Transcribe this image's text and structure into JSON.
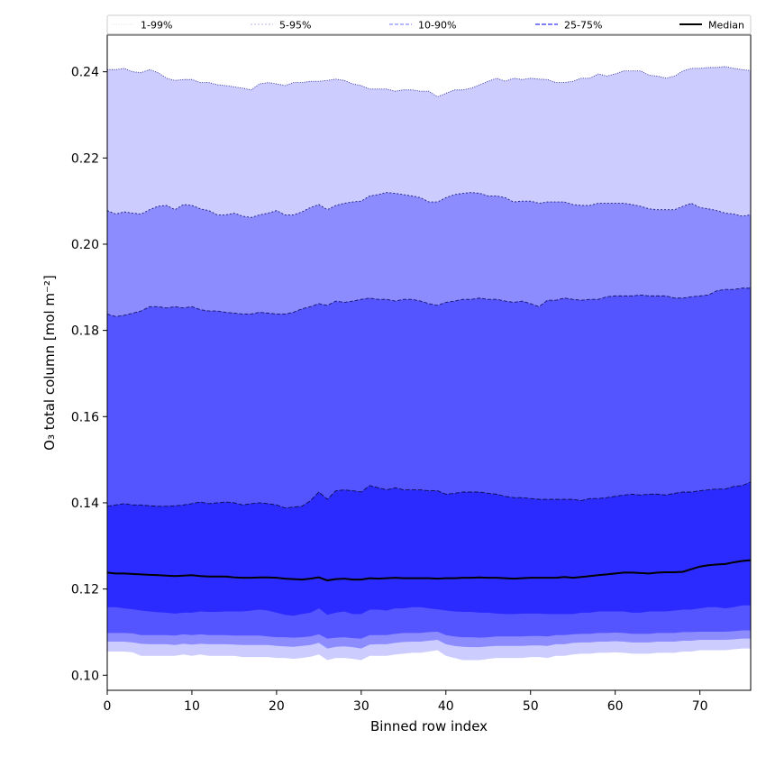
{
  "chart_data": {
    "type": "area",
    "title": "",
    "xlabel": "Binned row index",
    "ylabel": "O₃ total column [mol m⁻²]",
    "xlim": [
      0,
      76
    ],
    "ylim": [
      0.0965,
      0.2485
    ],
    "xticks": [
      0,
      10,
      20,
      30,
      40,
      50,
      60,
      70
    ],
    "yticks": [
      0.1,
      0.12,
      0.14,
      0.16,
      0.18,
      0.2,
      0.22,
      0.24
    ],
    "ytick_labels": [
      "0.10",
      "0.12",
      "0.14",
      "0.16",
      "0.18",
      "0.20",
      "0.22",
      "0.24"
    ],
    "grid": false,
    "legend_position": "top",
    "legend": [
      "1-99%",
      "5-95%",
      "10-90%",
      "25-75%",
      "Median"
    ],
    "x": [
      0,
      1,
      2,
      3,
      4,
      5,
      6,
      7,
      8,
      9,
      10,
      11,
      12,
      13,
      14,
      15,
      16,
      17,
      18,
      19,
      20,
      21,
      22,
      23,
      24,
      25,
      26,
      27,
      28,
      29,
      30,
      31,
      32,
      33,
      34,
      35,
      36,
      37,
      38,
      39,
      40,
      41,
      42,
      43,
      44,
      45,
      46,
      47,
      48,
      49,
      50,
      51,
      52,
      53,
      54,
      55,
      56,
      57,
      58,
      59,
      60,
      61,
      62,
      63,
      64,
      65,
      66,
      67,
      68,
      69,
      70,
      71,
      72,
      73,
      74,
      75,
      76
    ],
    "bands": [
      {
        "name": "1-99%",
        "color": "#ccccff",
        "edge_color": "#2a2aa0",
        "edge_dash": "1,1.5",
        "lower": [
          0.1055,
          0.1055,
          0.1055,
          0.1053,
          0.1045,
          0.1045,
          0.1045,
          0.1045,
          0.1045,
          0.1048,
          0.1045,
          0.1048,
          0.1045,
          0.1045,
          0.1045,
          0.1045,
          0.1042,
          0.1042,
          0.1042,
          0.1042,
          0.104,
          0.104,
          0.1038,
          0.104,
          0.1043,
          0.1048,
          0.1035,
          0.104,
          0.104,
          0.1038,
          0.1035,
          0.1045,
          0.1045,
          0.1045,
          0.1048,
          0.105,
          0.1052,
          0.1052,
          0.1055,
          0.1058,
          0.1045,
          0.104,
          0.1035,
          0.1035,
          0.1035,
          0.1038,
          0.104,
          0.104,
          0.104,
          0.104,
          0.1042,
          0.1042,
          0.104,
          0.1045,
          0.1045,
          0.1048,
          0.105,
          0.105,
          0.1052,
          0.1052,
          0.1053,
          0.1052,
          0.105,
          0.105,
          0.105,
          0.1052,
          0.1052,
          0.1052,
          0.1055,
          0.1055,
          0.1058,
          0.1058,
          0.1058,
          0.1058,
          0.106,
          0.1062,
          0.1062
        ],
        "upper": [
          0.2405,
          0.2405,
          0.2408,
          0.24,
          0.2398,
          0.2405,
          0.2398,
          0.2385,
          0.238,
          0.2382,
          0.2382,
          0.2375,
          0.2375,
          0.237,
          0.2368,
          0.2365,
          0.2362,
          0.2358,
          0.2372,
          0.2375,
          0.2372,
          0.2368,
          0.2375,
          0.2375,
          0.2378,
          0.2378,
          0.238,
          0.2383,
          0.238,
          0.2372,
          0.2368,
          0.236,
          0.236,
          0.236,
          0.2355,
          0.2358,
          0.2358,
          0.2355,
          0.2355,
          0.2342,
          0.235,
          0.2358,
          0.2358,
          0.2362,
          0.237,
          0.2378,
          0.2385,
          0.2378,
          0.2385,
          0.2382,
          0.2385,
          0.2383,
          0.2382,
          0.2375,
          0.2375,
          0.2378,
          0.2385,
          0.2385,
          0.2395,
          0.239,
          0.2395,
          0.2402,
          0.2402,
          0.2402,
          0.2392,
          0.239,
          0.2385,
          0.239,
          0.2402,
          0.2408,
          0.2408,
          0.241,
          0.241,
          0.2412,
          0.2408,
          0.2405,
          0.2403
        ]
      },
      {
        "name": "5-95%",
        "color": "#8c8cff",
        "edge_color": "#1c1c80",
        "edge_dash": "2,2",
        "lower": [
          0.1078,
          0.1078,
          0.1078,
          0.1076,
          0.1073,
          0.1072,
          0.1072,
          0.1072,
          0.107,
          0.1073,
          0.1071,
          0.1073,
          0.1072,
          0.1072,
          0.1072,
          0.1071,
          0.107,
          0.107,
          0.107,
          0.107,
          0.1068,
          0.1067,
          0.1066,
          0.1068,
          0.107,
          0.1075,
          0.1062,
          0.1066,
          0.1067,
          0.1065,
          0.1062,
          0.1071,
          0.1072,
          0.1072,
          0.1075,
          0.1077,
          0.1078,
          0.1078,
          0.108,
          0.1082,
          0.1072,
          0.1068,
          0.1066,
          0.1065,
          0.1065,
          0.1067,
          0.1068,
          0.1068,
          0.1068,
          0.1068,
          0.1069,
          0.1069,
          0.1068,
          0.1072,
          0.1072,
          0.1075,
          0.1076,
          0.1076,
          0.1078,
          0.1078,
          0.1079,
          0.1078,
          0.1076,
          0.1076,
          0.1076,
          0.1078,
          0.1078,
          0.1078,
          0.108,
          0.108,
          0.1082,
          0.1082,
          0.1082,
          0.1082,
          0.1083,
          0.1085,
          0.1085
        ],
        "upper": [
          0.2078,
          0.207,
          0.2075,
          0.2072,
          0.207,
          0.208,
          0.2088,
          0.209,
          0.208,
          0.2092,
          0.209,
          0.2082,
          0.2078,
          0.2068,
          0.2068,
          0.2072,
          0.2065,
          0.2062,
          0.2068,
          0.2072,
          0.2078,
          0.2068,
          0.2068,
          0.2075,
          0.2085,
          0.2092,
          0.208,
          0.209,
          0.2095,
          0.2098,
          0.21,
          0.2112,
          0.2115,
          0.212,
          0.2118,
          0.2115,
          0.2112,
          0.2108,
          0.2098,
          0.2098,
          0.2108,
          0.2115,
          0.2118,
          0.212,
          0.2118,
          0.2112,
          0.2112,
          0.2108,
          0.2098,
          0.21,
          0.21,
          0.2095,
          0.2098,
          0.2098,
          0.2098,
          0.2092,
          0.209,
          0.209,
          0.2095,
          0.2095,
          0.2095,
          0.2095,
          0.2092,
          0.2088,
          0.2082,
          0.208,
          0.208,
          0.208,
          0.2088,
          0.2095,
          0.2085,
          0.2082,
          0.2078,
          0.2072,
          0.207,
          0.2065,
          0.2068
        ]
      },
      {
        "name": "10-90%",
        "color": "#5555ff",
        "edge_color": "#15156a",
        "edge_dash": "4,2",
        "lower": [
          0.1098,
          0.1098,
          0.1098,
          0.1097,
          0.1093,
          0.1093,
          0.1093,
          0.1093,
          0.1092,
          0.1095,
          0.1093,
          0.1095,
          0.1093,
          0.1093,
          0.1093,
          0.1092,
          0.1092,
          0.1092,
          0.1092,
          0.109,
          0.1088,
          0.1088,
          0.1087,
          0.1088,
          0.109,
          0.1095,
          0.1085,
          0.1087,
          0.1088,
          0.1086,
          0.1085,
          0.1093,
          0.1093,
          0.1093,
          0.1096,
          0.1098,
          0.1098,
          0.1098,
          0.11,
          0.1101,
          0.1093,
          0.109,
          0.1088,
          0.1088,
          0.1087,
          0.1088,
          0.109,
          0.109,
          0.109,
          0.109,
          0.1091,
          0.1091,
          0.109,
          0.1093,
          0.1093,
          0.1095,
          0.1096,
          0.1096,
          0.1098,
          0.1098,
          0.1099,
          0.1098,
          0.1096,
          0.1096,
          0.1096,
          0.1098,
          0.1098,
          0.1098,
          0.11,
          0.11,
          0.1101,
          0.1101,
          0.1101,
          0.1101,
          0.1102,
          0.1104,
          0.1104
        ],
        "upper": [
          0.1838,
          0.1832,
          0.1835,
          0.184,
          0.1845,
          0.1855,
          0.1855,
          0.1852,
          0.1855,
          0.1852,
          0.1855,
          0.1848,
          0.1845,
          0.1845,
          0.1842,
          0.184,
          0.1838,
          0.1838,
          0.1842,
          0.184,
          0.1838,
          0.1838,
          0.1842,
          0.185,
          0.1855,
          0.1862,
          0.1858,
          0.1868,
          0.1865,
          0.1868,
          0.1872,
          0.1875,
          0.1872,
          0.1872,
          0.1868,
          0.1872,
          0.1872,
          0.1868,
          0.1862,
          0.1858,
          0.1865,
          0.1868,
          0.1872,
          0.1872,
          0.1875,
          0.1872,
          0.1872,
          0.1868,
          0.1865,
          0.1868,
          0.1862,
          0.1855,
          0.187,
          0.187,
          0.1875,
          0.1872,
          0.187,
          0.1872,
          0.1872,
          0.1878,
          0.188,
          0.188,
          0.188,
          0.1882,
          0.188,
          0.188,
          0.188,
          0.1875,
          0.1875,
          0.1878,
          0.188,
          0.1882,
          0.1892,
          0.1895,
          0.1895,
          0.1898,
          0.1898
        ]
      },
      {
        "name": "25-75%",
        "color": "#2b2bff",
        "edge_color": "#0c0c50",
        "edge_dash": "5,2",
        "lower": [
          0.1158,
          0.1158,
          0.1155,
          0.1153,
          0.115,
          0.1148,
          0.1146,
          0.1145,
          0.1143,
          0.1145,
          0.1145,
          0.1148,
          0.1147,
          0.1147,
          0.1148,
          0.1148,
          0.1148,
          0.115,
          0.1152,
          0.115,
          0.1145,
          0.114,
          0.1138,
          0.1142,
          0.1145,
          0.1155,
          0.114,
          0.1145,
          0.1148,
          0.1142,
          0.1142,
          0.1152,
          0.1152,
          0.115,
          0.1155,
          0.1155,
          0.1158,
          0.1158,
          0.1155,
          0.1153,
          0.115,
          0.1148,
          0.1147,
          0.1147,
          0.1145,
          0.1145,
          0.1143,
          0.1142,
          0.1142,
          0.1143,
          0.1143,
          0.1143,
          0.1142,
          0.1142,
          0.1142,
          0.1142,
          0.1145,
          0.1145,
          0.1148,
          0.1148,
          0.1148,
          0.1148,
          0.1145,
          0.1145,
          0.1148,
          0.1148,
          0.1148,
          0.115,
          0.1152,
          0.1152,
          0.1155,
          0.1158,
          0.1158,
          0.1155,
          0.1158,
          0.1162,
          0.1162
        ],
        "upper": [
          0.1392,
          0.1395,
          0.1398,
          0.1395,
          0.1395,
          0.1393,
          0.1392,
          0.1392,
          0.1393,
          0.1395,
          0.1398,
          0.1402,
          0.1398,
          0.14,
          0.1402,
          0.14,
          0.1395,
          0.1398,
          0.14,
          0.1398,
          0.1395,
          0.1388,
          0.139,
          0.1392,
          0.1405,
          0.1425,
          0.1408,
          0.1428,
          0.143,
          0.1428,
          0.1425,
          0.144,
          0.1435,
          0.143,
          0.1435,
          0.143,
          0.143,
          0.143,
          0.1428,
          0.1428,
          0.142,
          0.1422,
          0.1425,
          0.1425,
          0.1425,
          0.1422,
          0.142,
          0.1415,
          0.1412,
          0.1412,
          0.141,
          0.1408,
          0.1408,
          0.1408,
          0.1408,
          0.1408,
          0.1405,
          0.141,
          0.141,
          0.1412,
          0.1415,
          0.1418,
          0.142,
          0.1418,
          0.142,
          0.142,
          0.1418,
          0.1422,
          0.1425,
          0.1425,
          0.1428,
          0.143,
          0.1432,
          0.1432,
          0.1438,
          0.144,
          0.1448
        ]
      }
    ],
    "series": [
      {
        "name": "Median",
        "color": "#000000",
        "values": [
          0.1238,
          0.1236,
          0.1236,
          0.1235,
          0.1234,
          0.1233,
          0.1232,
          0.1231,
          0.123,
          0.1231,
          0.1232,
          0.123,
          0.1229,
          0.1229,
          0.1229,
          0.1227,
          0.1226,
          0.1226,
          0.1227,
          0.1227,
          0.1226,
          0.1224,
          0.1223,
          0.1222,
          0.1224,
          0.1227,
          0.122,
          0.1223,
          0.1224,
          0.1222,
          0.1222,
          0.1225,
          0.1224,
          0.1225,
          0.1226,
          0.1225,
          0.1225,
          0.1225,
          0.1225,
          0.1224,
          0.1225,
          0.1225,
          0.1226,
          0.1226,
          0.1227,
          0.1226,
          0.1226,
          0.1225,
          0.1224,
          0.1225,
          0.1226,
          0.1226,
          0.1226,
          0.1226,
          0.1228,
          0.1226,
          0.1228,
          0.123,
          0.1232,
          0.1234,
          0.1236,
          0.1238,
          0.1238,
          0.1237,
          0.1236,
          0.1238,
          0.1239,
          0.1239,
          0.124,
          0.1246,
          0.1252,
          0.1255,
          0.1257,
          0.1258,
          0.1262,
          0.1265,
          0.1267
        ]
      }
    ]
  }
}
